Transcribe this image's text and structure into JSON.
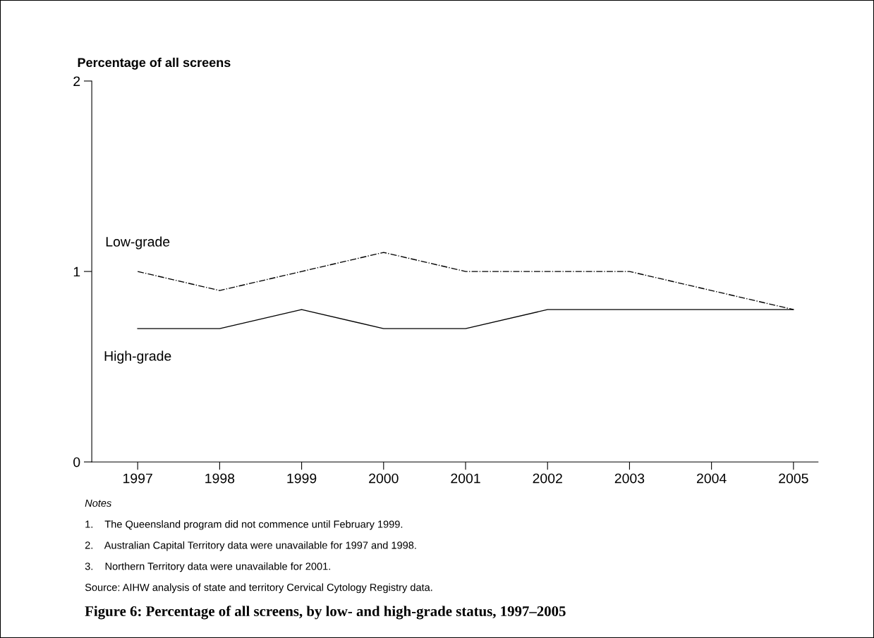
{
  "chart_data": {
    "type": "line",
    "title": "Figure 6: Percentage of all screens, by low- and high-grade status, 1997–2005",
    "ylabel": "Percentage of all screens",
    "categories": [
      "1997",
      "1998",
      "1999",
      "2000",
      "2001",
      "2002",
      "2003",
      "2004",
      "2005"
    ],
    "series": [
      {
        "name": "Low-grade",
        "color": "#000000",
        "line_style": "dashdot",
        "values": [
          1.0,
          0.9,
          1.0,
          1.1,
          1.0,
          1.0,
          1.0,
          0.9,
          0.8
        ]
      },
      {
        "name": "High-grade",
        "color": "#000000",
        "line_style": "solid",
        "values": [
          0.7,
          0.7,
          0.8,
          0.7,
          0.7,
          0.8,
          0.8,
          0.8,
          0.8
        ]
      }
    ],
    "ylim": [
      0,
      2
    ],
    "yticks": [
      0,
      1,
      2
    ],
    "grid": false,
    "legend": false,
    "marker": "none",
    "annotations": [
      "Notes",
      "1.    The Queensland program did not commence until February 1999.",
      "2.    Australian Capital Territory data were unavailable for 1997 and 1998.",
      "3.    Northern Territory data were unavailable for 2001.",
      "Source: AIHW analysis of state and territory Cervical Cytology Registry data."
    ]
  }
}
